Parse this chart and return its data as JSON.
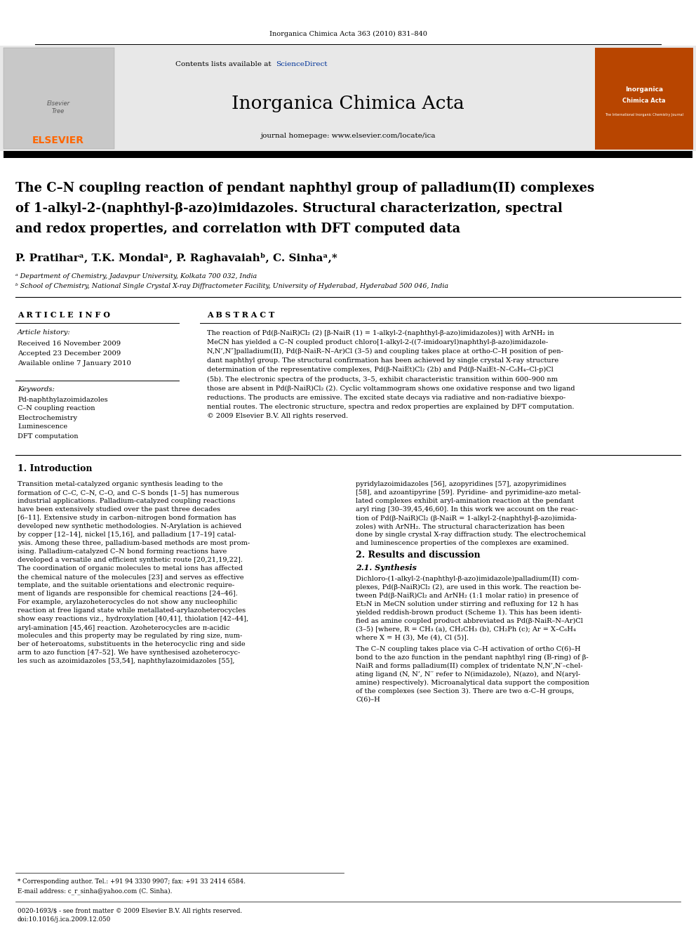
{
  "page_width": 9.92,
  "page_height": 13.23,
  "background_color": "#ffffff",
  "header_journal_ref": "Inorganica Chimica Acta 363 (2010) 831–840",
  "elsevier_text": "ELSEVIER",
  "journal_name": "Inorganica Chimica Acta",
  "journal_homepage": "journal homepage: www.elsevier.com/locate/ica",
  "sciencedirect_color": "#003399",
  "article_title_line1": "The C–N coupling reaction of pendant naphthyl group of palladium(II) complexes",
  "article_title_line2": "of 1-alkyl-2-(naphthyl-β-azo)imidazoles. Structural characterization, spectral",
  "article_title_line3": "and redox properties, and correlation with DFT computed data",
  "authors": "P. Pratiharᵃ, T.K. Mondalᵃ, P. Raghavaiahᵇ, C. Sinhaᵃ,*",
  "affiliation_a": "ᵃ Department of Chemistry, Jadavpur University, Kolkata 700 032, India",
  "affiliation_b": "ᵇ School of Chemistry, National Single Crystal X-ray Diffractometer Facility, University of Hyderabad, Hyderabad 500 046, India",
  "article_info_title": "A R T I C L E  I N F O",
  "abstract_title": "A B S T R A C T",
  "article_history_label": "Article history:",
  "received": "Received 16 November 2009",
  "accepted": "Accepted 23 December 2009",
  "available": "Available online 7 January 2010",
  "keywords_label": "Keywords:",
  "keyword1": "Pd-naphthylazoimidazoles",
  "keyword2": "C–N coupling reaction",
  "keyword3": "Electrochemistry",
  "keyword4": "Luminescence",
  "keyword5": "DFT computation",
  "abstract_lines": [
    "The reaction of Pd(β-NaiR)Cl₂ (2) [β-NaiR (1) = 1-alkyl-2-(naphthyl-β-azo)imidazoles)] with ArNH₂ in",
    "MeCN has yielded a C–N coupled product chloro[1-alkyl-2-((7-imidoaryl)naphthyl-β-azo)imidazole-",
    "N,N’,N″]palladium(II), Pd(β-NaiR–N–Ar)Cl (3–5) and coupling takes place at ortho-C–H position of pen-",
    "dant naphthyl group. The structural confirmation has been achieved by single crystal X-ray structure",
    "determination of the representative complexes, Pd(β-NaiEt)Cl₂ (2b) and Pd(β-NaiEt–N–C₆H₄–Cl-p)Cl",
    "(5b). The electronic spectra of the products, 3–5, exhibit characteristic transition within 600–900 nm",
    "those are absent in Pd(β-NaiR)Cl₂ (2). Cyclic voltammogram shows one oxidative response and two ligand",
    "reductions. The products are emissive. The excited state decays via radiative and non-radiative biexpo-",
    "nential routes. The electronic structure, spectra and redox properties are explained by DFT computation.",
    "© 2009 Elsevier B.V. All rights reserved."
  ],
  "section1_title": "1. Introduction",
  "left_col_lines": [
    "Transition metal-catalyzed organic synthesis leading to the",
    "formation of C–C, C–N, C–O, and C–S bonds [1–5] has numerous",
    "industrial applications. Palladium-catalyzed coupling reactions",
    "have been extensively studied over the past three decades",
    "[6–11]. Extensive study in carbon–nitrogen bond formation has",
    "developed new synthetic methodologies. N-Arylation is achieved",
    "by copper [12–14], nickel [15,16], and palladium [17–19] catal-",
    "ysis. Among these three, palladium-based methods are most prom-",
    "ising. Palladium-catalyzed C–N bond forming reactions have",
    "developed a versatile and efficient synthetic route [20,21,19,22].",
    "The coordination of organic molecules to metal ions has affected",
    "the chemical nature of the molecules [23] and serves as effective",
    "template, and the suitable orientations and electronic require-",
    "ment of ligands are responsible for chemical reactions [24–46].",
    "For example, arylazoheterocycles do not show any nucleophilic",
    "reaction at free ligand state while metallated-arylazoheterocycles",
    "show easy reactions viz., hydroxylation [40,41], thiolation [42–44],",
    "aryl-amination [45,46] reaction. Azoheterocycles are π-acidic",
    "molecules and this property may be regulated by ring size, num-",
    "ber of heteroatoms, substituents in the heterocyclic ring and side",
    "arm to azo function [47–52]. We have synthesised azoheterocyc-",
    "les such as azoimidazoles [53,54], naphthylazoimidazoles [55],"
  ],
  "right_col_lines": [
    "pyridylazoimidazoles [56], azopyridines [57], azopyrimidines",
    "[58], and azoantipyrine [59]. Pyridine- and pyrimidine-azo metal-",
    "lated complexes exhibit aryl-amination reaction at the pendant",
    "aryl ring [30–39,45,46,60]. In this work we account on the reac-",
    "tion of Pd(β-NaiR)Cl₂ (β-NaiR = 1-alkyl-2-(naphthyl-β-azo)imida-",
    "zoles) with ArNH₂. The structural characterization has been",
    "done by single crystal X-ray diffraction study. The electrochemical",
    "and luminescence properties of the complexes are examined."
  ],
  "section2_title": "2. Results and discussion",
  "section21_title": "2.1. Synthesis",
  "synth_lines": [
    "Dichloro-(1-alkyl-2-(naphthyl-β-azo)imidazole)palladium(II) com-",
    "plexes, Pd(β-NaiR)Cl₂ (2), are used in this work. The reaction be-",
    "tween Pd(β-NaiR)Cl₂ and ArNH₂ (1:1 molar ratio) in presence of",
    "Et₃N in MeCN solution under stirring and refluxing for 12 h has",
    "yielded reddish-brown product (Scheme 1). This has been identi-",
    "fied as amine coupled product abbreviated as Pd(β-NaiR–N–Ar)Cl",
    "(3–5) [where, R = CH₃ (a), CH₂CH₃ (b), CH₂Ph (c); Ar = X–C₆H₄",
    "where X = H (3), Me (4), Cl (5)]."
  ],
  "synth2_lines": [
    "The C–N coupling takes place via C–H activation of ortho C(6)–H",
    "bond to the azo function in the pendant naphthyl ring (B-ring) of β-",
    "NaiR and forms palladium(II) complex of tridentate N,N’,N′–chel-",
    "ating ligand (N, N’, N′′ refer to N(imidazole), N(azo), and N(aryl-",
    "amine) respectively). Microanalytical data support the composition",
    "of the complexes (see Section 3). There are two α-C–H groups,",
    "C(6)–H"
  ],
  "footnote_corresponding": "* Corresponding author. Tel.: +91 94 3330 9907; fax: +91 33 2414 6584.",
  "footnote_email": "E-mail address: c_r_sinha@yahoo.com (C. Sinha).",
  "footer_issn": "0020-1693/$ - see front matter © 2009 Elsevier B.V. All rights reserved.",
  "footer_doi": "doi:10.1016/j.ica.2009.12.050"
}
